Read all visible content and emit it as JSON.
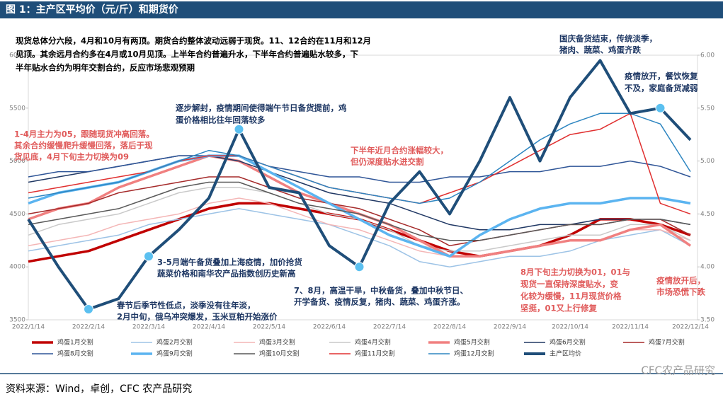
{
  "chart_data": {
    "type": "line",
    "title": "图 1：主产区平均价（元/斤）和期货价",
    "source": "资料来源：Wind，卓创，CFC 农产品研究",
    "watermark": "CFC农产品研究",
    "categories": [
      "2022/1/14",
      null,
      "2022/2/14",
      null,
      "2022/3/14",
      null,
      "2022/4/14",
      null,
      "2022/5/14",
      null,
      "2022/6/14",
      null,
      "2022/7/14",
      null,
      "2022/8/14",
      null,
      "2022/9/14",
      null,
      "2022/10/14",
      null,
      "2022/11/14",
      null,
      "2022/12/14"
    ],
    "ylim": [
      3500,
      6000
    ],
    "yticks": [
      3500,
      4000,
      4500,
      5000,
      5500,
      6000
    ],
    "y2lim": [
      3.5,
      6.0
    ],
    "y2ticks": [
      {
        "value": 3.5,
        "label": "3.50"
      },
      {
        "value": 4.0,
        "label": "4.00"
      },
      {
        "value": 4.5,
        "label": "4.50"
      },
      {
        "value": 5.0,
        "label": "5.00"
      },
      {
        "value": 5.5,
        "label": "5.50"
      },
      {
        "value": 6.0,
        "label": "6.00"
      }
    ],
    "series": [
      {
        "name": "鸡蛋1月交割",
        "color": "#c00000",
        "width": 3.5,
        "values": [
          4050,
          4100,
          4150,
          4250,
          4350,
          4450,
          4550,
          4600,
          4600,
          4550,
          4500,
          4450,
          4350,
          4250,
          4150,
          4100,
          4150,
          4200,
          4300,
          4450,
          4450,
          4400,
          4300
        ]
      },
      {
        "name": "鸡蛋2月交割",
        "color": "#9dc3e6",
        "width": 1.5,
        "values": [
          4150,
          4200,
          4250,
          4300,
          4400,
          4450,
          4500,
          4550,
          4500,
          4450,
          4400,
          4300,
          4200,
          4050,
          4000,
          4050,
          4100,
          4100,
          4150,
          4250,
          4300,
          4350,
          4200
        ]
      },
      {
        "name": "鸡蛋3月交割",
        "color": "#f4b6b6",
        "width": 1.5,
        "values": [
          4200,
          4250,
          4300,
          4400,
          4450,
          4500,
          4600,
          4650,
          4600,
          4500,
          4400,
          4350,
          4250,
          4150,
          4100,
          4100,
          4150,
          4200,
          4250,
          4250,
          4350,
          4350,
          4250
        ]
      },
      {
        "name": "鸡蛋4月交割",
        "color": "#c9c9c9",
        "width": 1.5,
        "values": [
          4300,
          4400,
          4450,
          4500,
          4600,
          4700,
          4750,
          4750,
          4700,
          4600,
          4500,
          4450,
          4350,
          4200,
          4150,
          4150,
          4200,
          4250,
          4300,
          4300,
          4400,
          4400,
          4250
        ]
      },
      {
        "name": "鸡蛋5月交割",
        "color": "#f08080",
        "width": 3.5,
        "values": [
          4450,
          4550,
          4600,
          4750,
          4850,
          4950,
          5050,
          5000,
          4850,
          4700,
          4600,
          4500,
          4400,
          4250,
          4100,
          4100,
          4150,
          4200,
          4250,
          4250,
          4350,
          4400,
          4200
        ]
      },
      {
        "name": "鸡蛋6月交割",
        "color": "#203864",
        "width": 1.5,
        "values": [
          4800,
          4850,
          4900,
          4950,
          5000,
          5050,
          5050,
          5000,
          4900,
          4800,
          4700,
          4650,
          4600,
          4500,
          4400,
          4350,
          4350,
          4400,
          4400,
          4450,
          4450,
          4450,
          4400
        ]
      },
      {
        "name": "鸡蛋7月交割",
        "color": "#a52a2a",
        "width": 1.5,
        "values": [
          4500,
          4550,
          4600,
          4700,
          4750,
          4800,
          4850,
          4850,
          4750,
          4650,
          4600,
          4550,
          4450,
          4350,
          4200,
          4250,
          4300,
          4350,
          4400,
          4400,
          4450,
          4450,
          4300
        ]
      },
      {
        "name": "鸡蛋8月交割",
        "color": "#2f5597",
        "width": 1.5,
        "values": [
          4850,
          4900,
          4900,
          4950,
          5000,
          5050,
          5050,
          5050,
          4950,
          4900,
          4850,
          4850,
          4800,
          4800,
          4850,
          4850,
          4900,
          4900,
          4950,
          4950,
          5000,
          4950,
          4850
        ]
      },
      {
        "name": "鸡蛋9月交割",
        "color": "#5bb4f0",
        "width": 3.5,
        "values": [
          4600,
          4700,
          4750,
          4800,
          4900,
          5000,
          5050,
          5050,
          4900,
          4750,
          4600,
          4450,
          4300,
          4200,
          4100,
          4300,
          4450,
          4550,
          4600,
          4600,
          4650,
          4650,
          4600
        ]
      },
      {
        "name": "鸡蛋10月交割",
        "color": "#595959",
        "width": 1.5,
        "values": [
          4400,
          4450,
          4500,
          4550,
          4650,
          4750,
          4800,
          4800,
          4700,
          4600,
          4550,
          4500,
          4400,
          4300,
          4250,
          4250,
          4300,
          4350,
          4400,
          4400,
          4450,
          4450,
          4400
        ]
      },
      {
        "name": "鸡蛋11月交割",
        "color": "#e03030",
        "width": 1.5,
        "values": [
          4700,
          4750,
          4800,
          4850,
          4900,
          5000,
          5050,
          5050,
          4950,
          4850,
          4750,
          4700,
          4650,
          4600,
          4700,
          4800,
          4950,
          5100,
          5250,
          5300,
          5450,
          4600,
          4500
        ]
      },
      {
        "name": "鸡蛋12月交割",
        "color": "#2e86c1",
        "width": 1.5,
        "values": [
          4650,
          4700,
          4750,
          4800,
          4900,
          5000,
          5100,
          5050,
          4950,
          4850,
          4750,
          4700,
          4650,
          4600,
          4650,
          4800,
          5000,
          5200,
          5350,
          5450,
          5450,
          5350,
          4900
        ]
      },
      {
        "name": "主产区均价",
        "color": "#1f4e79",
        "width": 4,
        "axis": "y2",
        "values": [
          4.45,
          4.0,
          3.6,
          3.7,
          4.1,
          4.35,
          4.65,
          5.3,
          4.75,
          4.7,
          4.2,
          4.0,
          4.6,
          4.9,
          4.5,
          5.0,
          5.6,
          5.0,
          5.6,
          5.95,
          5.45,
          5.5,
          5.2
        ]
      }
    ],
    "annotations": [
      {
        "color": "#000000",
        "lines": [
          "现货总体分六段，4月和10月有两顶。期货合约整体波动远弱于现货。11、12合约在11月和12月",
          "见顶。其余远月合约多在4月或10月见顶。上半年合约普遍升水，下半年合约普遍贴水较多，下",
          "半年贴水合约为明年交割合约，反应市场悲观预期"
        ]
      },
      {
        "color": "#e05a5a",
        "lines": [
          "1-4月主力为05，跟随现货冲高回落。",
          "其余合约缓慢爬升缓慢回落，落后于现",
          "货见底，4月下旬主力切换为09"
        ]
      },
      {
        "color": "#1f3864",
        "lines": [
          "逐步解封，疫情期间使得端午节日备货提前，鸡",
          "蛋价格相比往年回落较多"
        ]
      },
      {
        "color": "#1f3864",
        "lines": [
          "3-5月端午备货叠加上海疫情，加价抢货",
          "蔬菜价格和南华农产品指数创历史新高"
        ]
      },
      {
        "color": "#1f3864",
        "lines": [
          "春节后季节性低点，淡季没有往年淡，",
          "2月中旬，俄乌冲突爆发，玉米豆粕开始涨价"
        ]
      },
      {
        "color": "#e05a5a",
        "lines": [
          "下半年近月合约涨幅较大，",
          "但仍深度贴水进交割"
        ]
      },
      {
        "color": "#1f3864",
        "lines": [
          "7、8月，高温干旱，中秋备货，叠加中秋节日、",
          "开学备货、疫情反复，猪肉、蔬菜、鸡蛋齐涨。"
        ]
      },
      {
        "color": "#1f3864",
        "lines": [
          "国庆备货结束，传统淡季，",
          "猪肉、蔬菜、鸡蛋齐跌"
        ]
      },
      {
        "color": "#1f3864",
        "lines": [
          "疫情放开，餐饮恢复",
          "不及，家庭备货减弱"
        ]
      },
      {
        "color": "#e05a5a",
        "lines": [
          "8月下旬主力切换为01，01与",
          "现货一直保持深度贴水，变",
          "化较为缓慢，11月现货价格",
          "坚挺，01又上行修复"
        ]
      },
      {
        "color": "#e05a5a",
        "lines": [
          "疫情放开后，",
          "市场恐慌下跌"
        ]
      }
    ]
  }
}
